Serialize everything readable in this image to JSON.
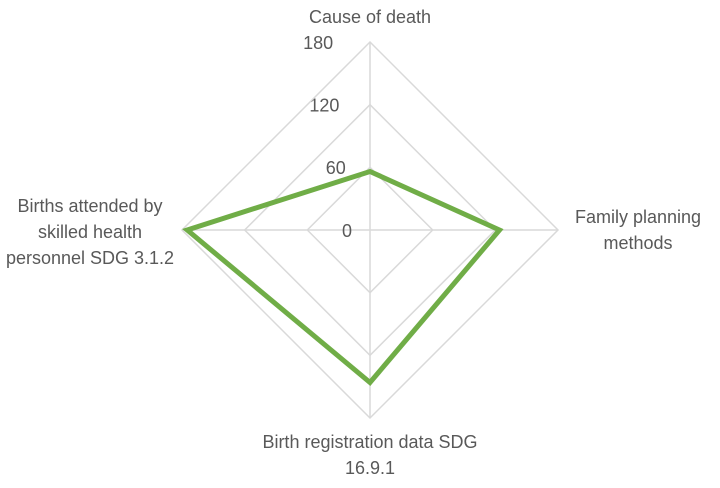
{
  "chart_data": {
    "type": "radar",
    "categories": [
      "Cause of death",
      "Family planning methods",
      "Birth registration data SDG 16.9.1",
      "Births attended by skilled health personnel SDG 3.1.2"
    ],
    "series": [
      {
        "name": null,
        "color": "#70ad47",
        "values": [
          56,
          124,
          146,
          175
        ]
      }
    ],
    "ylim": [
      0,
      180
    ],
    "yticks": [
      0,
      60,
      120,
      180
    ],
    "grid": true
  }
}
